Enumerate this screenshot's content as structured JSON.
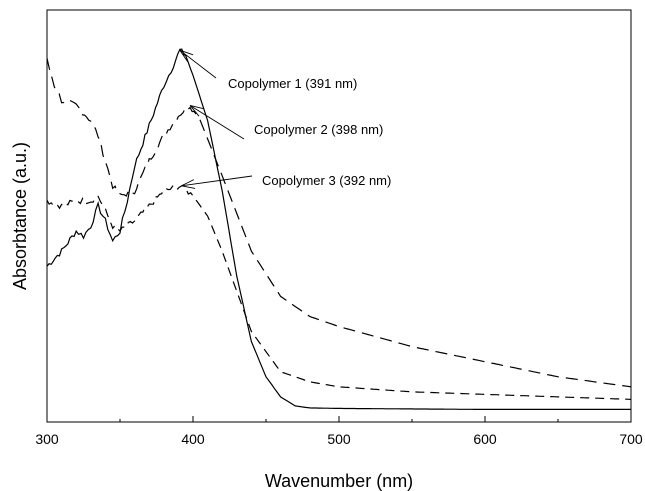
{
  "chart_data": {
    "type": "line",
    "title": "",
    "xlabel": "Wavenumber (nm)",
    "ylabel": "Absorbtance (a.u.)",
    "xlim": [
      300,
      700
    ],
    "xticks": [
      "300",
      "400",
      "500",
      "600",
      "700"
    ],
    "yticks": [],
    "grid": false,
    "legend": "none",
    "series": [
      {
        "line_style": "solid",
        "color": "#000000",
        "x": [
          300,
          310,
          320,
          325,
          330,
          335,
          340,
          345,
          350,
          355,
          360,
          370,
          380,
          385,
          391,
          395,
          400,
          410,
          420,
          430,
          440,
          450,
          460,
          470,
          480,
          500,
          550,
          600,
          650,
          700
        ],
        "y": [
          0.29,
          0.32,
          0.36,
          0.35,
          0.37,
          0.41,
          0.38,
          0.34,
          0.36,
          0.42,
          0.49,
          0.57,
          0.65,
          0.68,
          0.72,
          0.71,
          0.67,
          0.58,
          0.44,
          0.27,
          0.14,
          0.07,
          0.03,
          0.012,
          0.008,
          0.007,
          0.006,
          0.005,
          0.005,
          0.005
        ]
      },
      {
        "line_style": "long-dash",
        "color": "#000000",
        "x": [
          300,
          305,
          310,
          320,
          330,
          335,
          340,
          345,
          350,
          360,
          370,
          380,
          390,
          398,
          405,
          420,
          440,
          460,
          480,
          500,
          550,
          600,
          650,
          700
        ],
        "y": [
          0.7,
          0.65,
          0.62,
          0.61,
          0.58,
          0.55,
          0.5,
          0.45,
          0.43,
          0.44,
          0.5,
          0.55,
          0.59,
          0.61,
          0.58,
          0.47,
          0.32,
          0.23,
          0.19,
          0.17,
          0.13,
          0.1,
          0.07,
          0.05
        ]
      },
      {
        "line_style": "dash",
        "color": "#000000",
        "x": [
          300,
          310,
          320,
          330,
          335,
          340,
          345,
          350,
          360,
          370,
          380,
          392,
          400,
          410,
          420,
          440,
          460,
          480,
          500,
          550,
          600,
          650,
          700
        ],
        "y": [
          0.42,
          0.41,
          0.42,
          0.42,
          0.43,
          0.4,
          0.37,
          0.36,
          0.38,
          0.41,
          0.44,
          0.45,
          0.43,
          0.39,
          0.32,
          0.16,
          0.08,
          0.06,
          0.05,
          0.04,
          0.035,
          0.03,
          0.025
        ]
      }
    ],
    "annotations": [
      {
        "text": "Copolymer 1 (391 nm)",
        "arrow_x": 391,
        "arrow_y": 0.72
      },
      {
        "text": "Copolymer 2 (398 nm)",
        "arrow_x": 398,
        "arrow_y": 0.61
      },
      {
        "text": "Copolymer 3 (392 nm)",
        "arrow_x": 392,
        "arrow_y": 0.45
      }
    ]
  }
}
